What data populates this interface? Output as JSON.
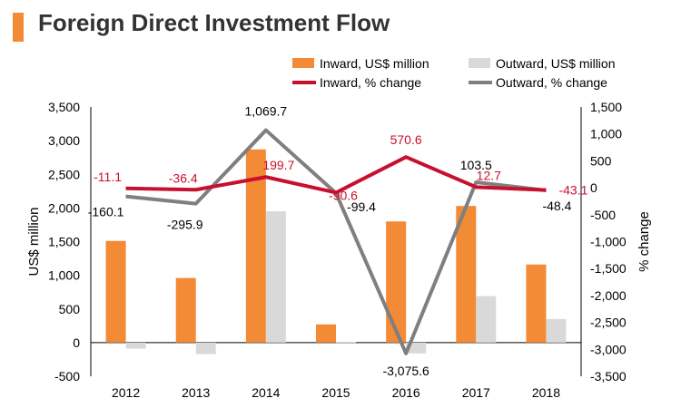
{
  "title": "Foreign Direct Investment Flow",
  "colors": {
    "inward_bar": "#F28A36",
    "outward_bar": "#D9D9D9",
    "inward_line": "#C8102E",
    "outward_line": "#7F7F7F",
    "accent": "#F28A36"
  },
  "chart_data": {
    "type": "bar",
    "categories": [
      "2012",
      "2013",
      "2014",
      "2015",
      "2016",
      "2017",
      "2018"
    ],
    "series": [
      {
        "name": "Inward, US$ million",
        "type": "bar",
        "axis": "left",
        "values": [
          1510,
          960,
          2870,
          270,
          1800,
          2030,
          1160
        ]
      },
      {
        "name": "Outward, US$ million",
        "type": "bar",
        "axis": "left",
        "values": [
          -90,
          -170,
          1950,
          10,
          -160,
          690,
          350
        ]
      },
      {
        "name": "Inward, % change",
        "type": "line",
        "axis": "right",
        "values": [
          -11.1,
          -36.4,
          199.7,
          -90.6,
          570.6,
          12.7,
          -43.1
        ],
        "labels": [
          "-11.1",
          "-36.4",
          "199.7",
          "-90.6",
          "570.6",
          "12.7",
          "-43.1"
        ]
      },
      {
        "name": "Outward, % change",
        "type": "line",
        "axis": "right",
        "values": [
          -160.1,
          -295.9,
          1069.7,
          -99.4,
          -3075.6,
          103.5,
          -48.4
        ],
        "labels": [
          "-160.1",
          "-295.9",
          "1,069.7",
          "-99.4",
          "-3,075.6",
          "103.5",
          "-48.4"
        ]
      }
    ],
    "ylabel": "US$ million",
    "y2label": "% change",
    "ylim": [
      -500,
      3500
    ],
    "y2lim": [
      -3500,
      1500
    ],
    "yticks": [
      "3,500",
      "3,000",
      "2,500",
      "2,000",
      "1,500",
      "1,000",
      "500",
      "0",
      "-500"
    ],
    "y2ticks": [
      "1,500",
      "1,000",
      "500",
      "0",
      "-500",
      "-1,000",
      "-1,500",
      "-2,000",
      "-2,500",
      "-3,000",
      "-3,500"
    ],
    "grid": false,
    "legend_position": "top-right"
  }
}
